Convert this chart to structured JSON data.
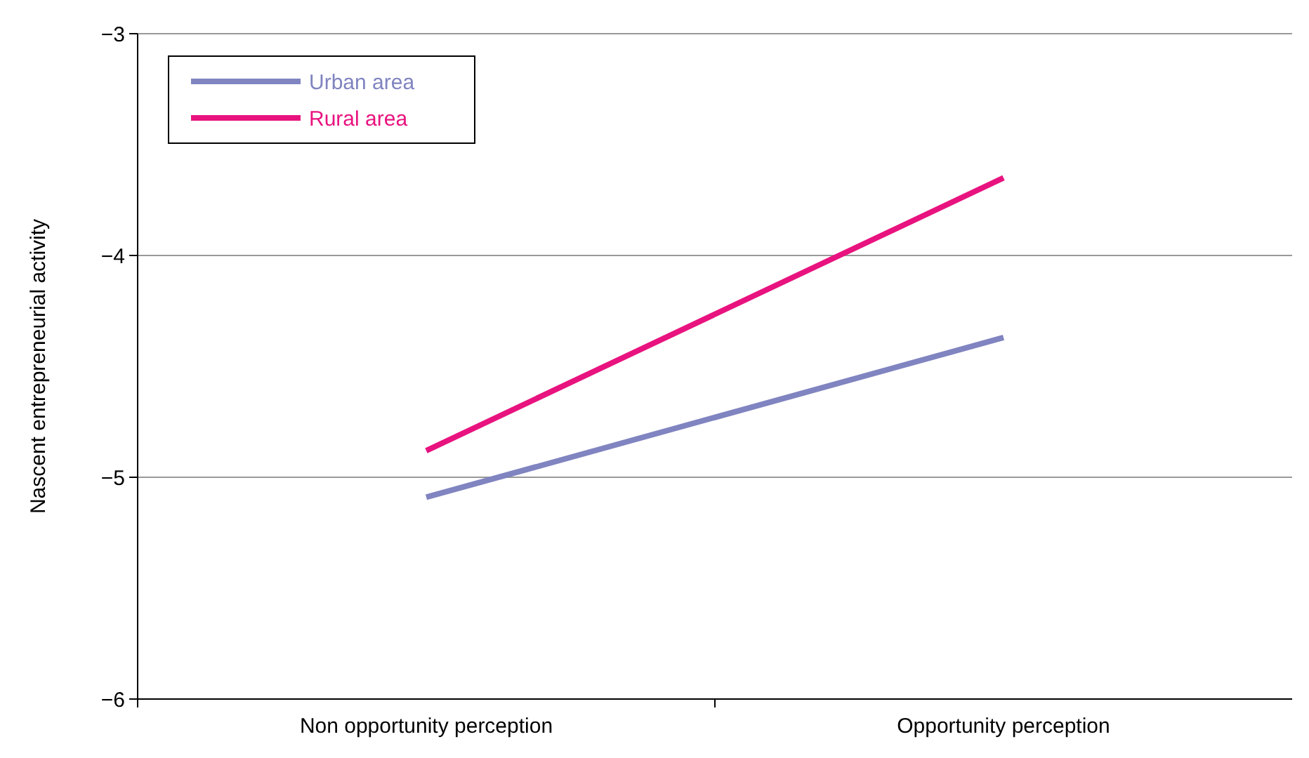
{
  "chart_data": {
    "type": "line",
    "ylabel": "Nascent entrepreneurial activity",
    "categories": [
      "Non opportunity perception",
      "Opportunity perception"
    ],
    "series": [
      {
        "name": "Urban area",
        "color": "#8084c0",
        "values": [
          -5.09,
          -4.37
        ]
      },
      {
        "name": "Rural area",
        "color": "#e8137f",
        "values": [
          -4.88,
          -3.65
        ]
      }
    ],
    "ylim": [
      -6,
      -3
    ],
    "yticks": [
      {
        "value": -6,
        "label": "−6"
      },
      {
        "value": -5,
        "label": "−5"
      },
      {
        "value": -4,
        "label": "−4"
      },
      {
        "value": -3,
        "label": "−3"
      }
    ],
    "grid": "y",
    "legend": "top left",
    "marker": "none",
    "line_style": "solid"
  }
}
